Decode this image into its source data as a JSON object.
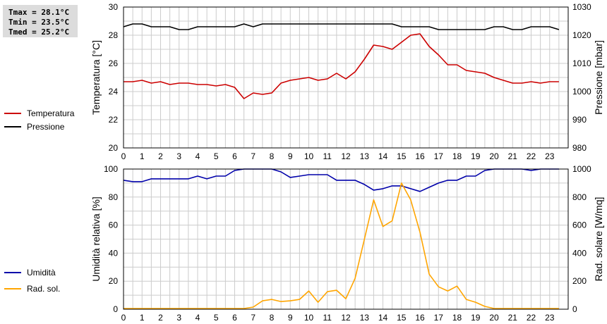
{
  "stats": {
    "tmax": "Tmax = 28.1°C",
    "tmin": "Tmin = 23.5°C",
    "tmed": "Tmed = 25.2°C"
  },
  "colors": {
    "temperature": "#cc0000",
    "pressure": "#000000",
    "humidity": "#0000aa",
    "radiation": "#ffa500",
    "grid": "#cccccc"
  },
  "chart_data": [
    {
      "type": "line",
      "xlabel": "",
      "xlim": [
        0,
        24
      ],
      "xticks": [
        0,
        1,
        2,
        3,
        4,
        5,
        6,
        7,
        8,
        9,
        10,
        11,
        12,
        13,
        14,
        15,
        16,
        17,
        18,
        19,
        20,
        21,
        22,
        23
      ],
      "ylabel": "Temperatura [°C]",
      "ylim": [
        20,
        30
      ],
      "yticks": [
        20,
        22,
        24,
        26,
        28,
        30
      ],
      "y2label": "Pressione [mbar]",
      "y2lim": [
        980,
        1030
      ],
      "y2ticks": [
        980,
        990,
        1000,
        1010,
        1020,
        1030
      ],
      "grid": true,
      "legend_position": "left",
      "series": [
        {
          "name": "Temperatura",
          "axis": "left",
          "color": "#cc0000",
          "x": [
            0,
            0.5,
            1,
            1.5,
            2,
            2.5,
            3,
            3.5,
            4,
            4.5,
            5,
            5.5,
            6,
            6.5,
            7,
            7.5,
            8,
            8.5,
            9,
            9.5,
            10,
            10.5,
            11,
            11.5,
            12,
            12.5,
            13,
            13.5,
            14,
            14.5,
            15,
            15.5,
            16,
            16.5,
            17,
            17.5,
            18,
            18.5,
            19,
            19.5,
            20,
            20.5,
            21,
            21.5,
            22,
            22.5,
            23,
            23.5
          ],
          "values": [
            24.7,
            24.7,
            24.8,
            24.6,
            24.7,
            24.5,
            24.6,
            24.6,
            24.5,
            24.5,
            24.4,
            24.5,
            24.3,
            23.5,
            23.9,
            23.8,
            23.9,
            24.6,
            24.8,
            24.9,
            25.0,
            24.8,
            24.9,
            25.3,
            24.9,
            25.4,
            26.3,
            27.3,
            27.2,
            27.0,
            27.5,
            28.0,
            28.1,
            27.2,
            26.6,
            25.9,
            25.9,
            25.5,
            25.4,
            25.3,
            25.0,
            24.8,
            24.6,
            24.6,
            24.7,
            24.6,
            24.7,
            24.7
          ]
        },
        {
          "name": "Pressione",
          "axis": "right",
          "color": "#000000",
          "x": [
            0,
            0.5,
            1,
            1.5,
            2,
            2.5,
            3,
            3.5,
            4,
            4.5,
            5,
            5.5,
            6,
            6.5,
            7,
            7.5,
            8,
            8.5,
            9,
            9.5,
            10,
            10.5,
            11,
            11.5,
            12,
            12.5,
            13,
            13.5,
            14,
            14.5,
            15,
            15.5,
            16,
            16.5,
            17,
            17.5,
            18,
            18.5,
            19,
            19.5,
            20,
            20.5,
            21,
            21.5,
            22,
            22.5,
            23,
            23.5
          ],
          "values": [
            1023,
            1024,
            1024,
            1023,
            1023,
            1023,
            1022,
            1022,
            1023,
            1023,
            1023,
            1023,
            1023,
            1024,
            1023,
            1024,
            1024,
            1024,
            1024,
            1024,
            1024,
            1024,
            1024,
            1024,
            1024,
            1024,
            1024,
            1024,
            1024,
            1024,
            1023,
            1023,
            1023,
            1023,
            1022,
            1022,
            1022,
            1022,
            1022,
            1022,
            1023,
            1023,
            1022,
            1022,
            1023,
            1023,
            1023,
            1022
          ]
        }
      ]
    },
    {
      "type": "line",
      "xlabel": "",
      "xlim": [
        0,
        24
      ],
      "xticks": [
        0,
        1,
        2,
        3,
        4,
        5,
        6,
        7,
        8,
        9,
        10,
        11,
        12,
        13,
        14,
        15,
        16,
        17,
        18,
        19,
        20,
        21,
        22,
        23
      ],
      "ylabel": "Umidità relativa [%]",
      "ylim": [
        0,
        100
      ],
      "yticks": [
        0,
        20,
        40,
        60,
        80,
        100
      ],
      "y2label": "Rad. solare [W/mq]",
      "y2lim": [
        0,
        1000
      ],
      "y2ticks": [
        0,
        200,
        400,
        600,
        800,
        1000
      ],
      "grid": true,
      "legend_position": "left",
      "series": [
        {
          "name": "Umidità",
          "axis": "left",
          "color": "#0000aa",
          "x": [
            0,
            0.5,
            1,
            1.5,
            2,
            2.5,
            3,
            3.5,
            4,
            4.5,
            5,
            5.5,
            6,
            6.5,
            7,
            7.5,
            8,
            8.5,
            9,
            9.5,
            10,
            10.5,
            11,
            11.5,
            12,
            12.5,
            13,
            13.5,
            14,
            14.5,
            15,
            15.5,
            16,
            16.5,
            17,
            17.5,
            18,
            18.5,
            19,
            19.5,
            20,
            20.5,
            21,
            21.5,
            22,
            22.5,
            23,
            23.5
          ],
          "values": [
            92,
            91,
            91,
            93,
            93,
            93,
            93,
            93,
            95,
            93,
            95,
            95,
            99,
            100,
            100,
            100,
            100,
            98,
            94,
            95,
            96,
            96,
            96,
            92,
            92,
            92,
            89,
            85,
            86,
            88,
            88,
            86,
            84,
            87,
            90,
            92,
            92,
            95,
            95,
            99,
            100,
            100,
            100,
            100,
            99,
            100,
            100,
            100
          ]
        },
        {
          "name": "Rad. sol.",
          "axis": "right",
          "color": "#ffa500",
          "x": [
            0,
            0.5,
            1,
            1.5,
            2,
            2.5,
            3,
            3.5,
            4,
            4.5,
            5,
            5.5,
            6,
            6.5,
            7,
            7.5,
            8,
            8.5,
            9,
            9.5,
            10,
            10.5,
            11,
            11.5,
            12,
            12.5,
            13,
            13.5,
            14,
            14.5,
            15,
            15.5,
            16,
            16.5,
            17,
            17.5,
            18,
            18.5,
            19,
            19.5,
            20,
            20.5,
            21,
            21.5,
            22,
            22.5,
            23,
            23.5
          ],
          "values": [
            5,
            5,
            5,
            5,
            5,
            5,
            5,
            5,
            5,
            5,
            5,
            5,
            5,
            5,
            15,
            60,
            70,
            55,
            60,
            70,
            130,
            50,
            125,
            135,
            75,
            220,
            500,
            780,
            590,
            630,
            900,
            780,
            550,
            250,
            160,
            130,
            165,
            70,
            50,
            20,
            5,
            5,
            5,
            5,
            5,
            5,
            5,
            5
          ]
        }
      ]
    }
  ]
}
